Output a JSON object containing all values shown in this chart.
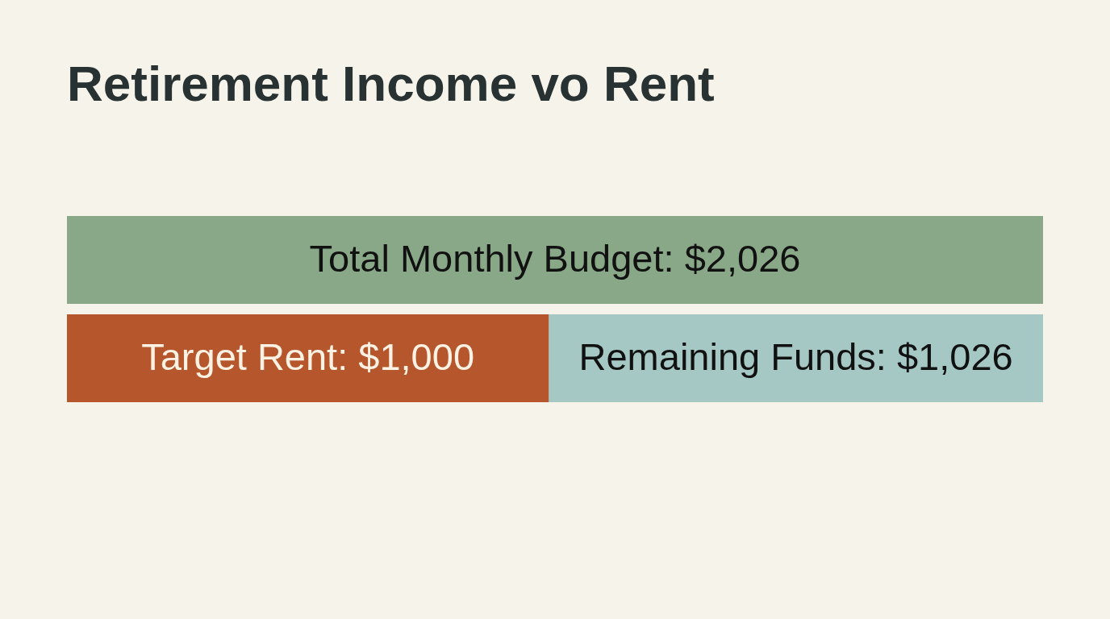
{
  "chart_data": {
    "type": "bar",
    "orientation": "horizontal",
    "stacked": true,
    "title": "Retirement Income vo Rent",
    "categories": [
      null,
      null
    ],
    "tick_labels": false,
    "series": [
      {
        "color": "#88a888",
        "values": [
          2026,
          null
        ],
        "value_labels": [
          "Total Monthly Budget: $2,026",
          null
        ]
      },
      {
        "color": "#b5562c",
        "values": [
          null,
          1000
        ],
        "value_labels": [
          null,
          "Target Rent: $1,000"
        ]
      },
      {
        "color": "#a5c8c5",
        "values": [
          null,
          1026
        ],
        "value_labels": [
          null,
          "Remaining Funds: $1,026"
        ]
      }
    ]
  }
}
